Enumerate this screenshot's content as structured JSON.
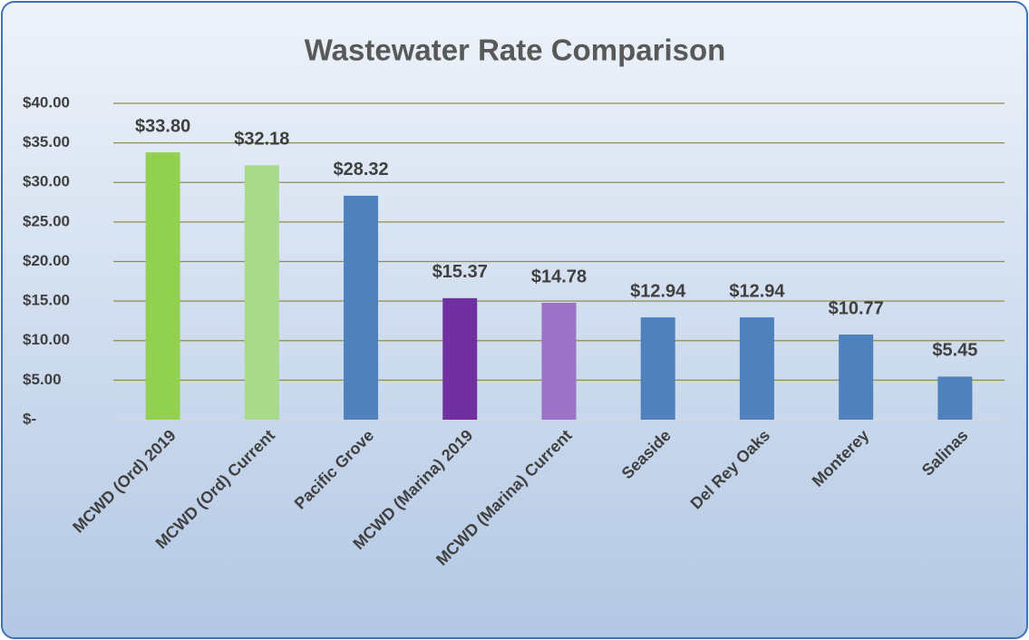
{
  "chart_data": {
    "type": "bar",
    "title": "Wastewater Rate Comparison",
    "categories": [
      "MCWD (Ord) 2019",
      "MCWD (Ord) Current",
      "Pacific Grove",
      "MCWD (Marina) 2019",
      "MCWD (Marina) Current",
      "Seaside",
      "Del Rey Oaks",
      "Monterey",
      "Salinas"
    ],
    "values": [
      33.8,
      32.18,
      28.32,
      15.37,
      14.78,
      12.94,
      12.94,
      10.77,
      5.45
    ],
    "value_labels": [
      "$33.80",
      "$32.18",
      "$28.32",
      "$15.37",
      "$14.78",
      "$12.94",
      "$12.94",
      "$10.77",
      "$5.45"
    ],
    "colors": [
      "#92d050",
      "#a9d98a",
      "#4f81bd",
      "#7030a0",
      "#9b72c6",
      "#4f81bd",
      "#4f81bd",
      "#4f81bd",
      "#4f81bd"
    ],
    "ylim": [
      0,
      40
    ],
    "yticks": [
      {
        "value": 0,
        "label": "$-"
      },
      {
        "value": 5,
        "label": "$5.00"
      },
      {
        "value": 10,
        "label": "$10.00"
      },
      {
        "value": 15,
        "label": "$15.00"
      },
      {
        "value": 20,
        "label": "$20.00"
      },
      {
        "value": 25,
        "label": "$25.00"
      },
      {
        "value": 30,
        "label": "$30.00"
      },
      {
        "value": 35,
        "label": "$35.00"
      },
      {
        "value": 40,
        "label": "$40.00"
      }
    ],
    "grid": true,
    "grid_color": "#8f8d4a"
  }
}
